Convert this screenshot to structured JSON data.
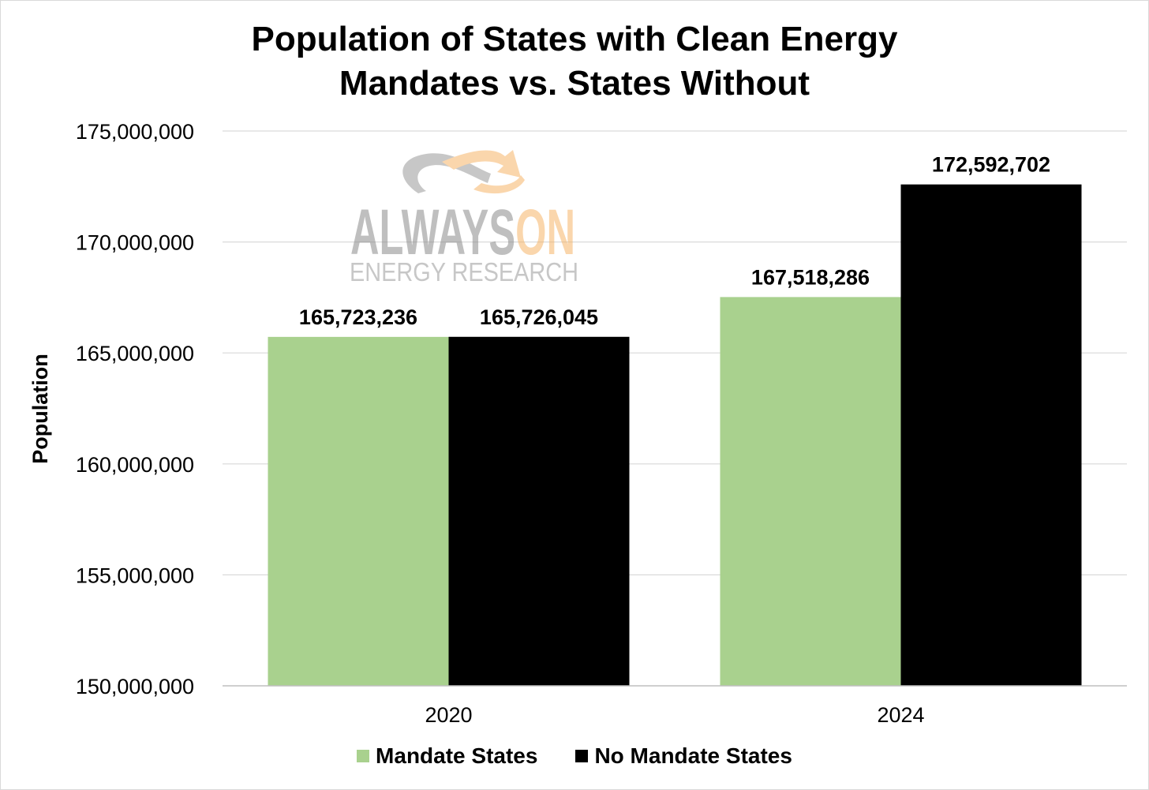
{
  "chart_data": {
    "type": "bar",
    "title_lines": [
      "Population of States with Clean Energy",
      "Mandates vs. States Without"
    ],
    "xlabel": "",
    "ylabel": "Population",
    "categories": [
      "2020",
      "2024"
    ],
    "series": [
      {
        "name": "Mandate States",
        "color": "#a9d18e",
        "values": [
          165723236,
          167518286
        ],
        "labels": [
          "165,723,236",
          "167,518,286"
        ]
      },
      {
        "name": "No Mandate States",
        "color": "#000000",
        "values": [
          165726045,
          172592702
        ],
        "labels": [
          "165,726,045",
          "172,592,702"
        ]
      }
    ],
    "ylim": [
      150000000,
      175000000
    ],
    "yticks": [
      150000000,
      155000000,
      160000000,
      165000000,
      170000000,
      175000000
    ],
    "ytick_labels": [
      "150,000,000",
      "155,000,000",
      "160,000,000",
      "165,000,000",
      "170,000,000",
      "175,000,000"
    ],
    "grid": true,
    "legend_position": "bottom"
  },
  "watermark": {
    "primary": "ALWAYSON",
    "secondary": "ENERGY RESEARCH"
  }
}
